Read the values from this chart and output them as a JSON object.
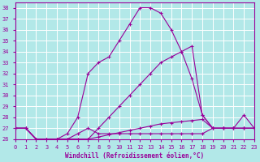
{
  "xlabel": "Windchill (Refroidissement éolien,°C)",
  "ylabel": "",
  "xlim": [
    0,
    23
  ],
  "ylim": [
    26,
    38.5
  ],
  "yticks": [
    26,
    27,
    28,
    29,
    30,
    31,
    32,
    33,
    34,
    35,
    36,
    37,
    38
  ],
  "xticks": [
    0,
    1,
    2,
    3,
    4,
    5,
    6,
    7,
    8,
    9,
    10,
    11,
    12,
    13,
    14,
    15,
    16,
    17,
    18,
    19,
    20,
    21,
    22,
    23
  ],
  "bg_color": "#b2e8e8",
  "grid_color": "#ffffff",
  "line_color": "#990099",
  "line_diagonal_x": [
    0,
    1,
    2,
    3,
    4,
    5,
    6,
    7,
    8,
    9,
    10,
    11,
    12,
    13,
    14,
    15,
    16,
    17,
    18,
    19,
    20,
    21,
    22,
    23
  ],
  "line_diagonal_y": [
    27,
    27,
    26,
    26,
    26,
    26,
    26,
    26,
    26.2,
    26.4,
    26.6,
    26.8,
    27,
    27.2,
    27.4,
    27.5,
    27.6,
    27.7,
    27.8,
    27,
    27,
    27,
    27,
    27
  ],
  "line_flat_x": [
    0,
    1,
    2,
    3,
    4,
    5,
    6,
    7,
    8,
    9,
    10,
    11,
    12,
    13,
    14,
    15,
    16,
    17,
    18,
    19,
    20,
    21,
    22,
    23
  ],
  "line_flat_y": [
    27,
    27,
    26,
    26,
    26,
    26,
    26.5,
    27,
    26.5,
    26.5,
    26.5,
    26.5,
    26.5,
    26.5,
    26.5,
    26.5,
    26.5,
    26.5,
    26.5,
    27,
    27,
    27,
    27,
    27
  ],
  "line_curve_x": [
    0,
    1,
    2,
    3,
    4,
    5,
    6,
    7,
    8,
    9,
    10,
    11,
    12,
    13,
    14,
    15,
    16,
    17,
    18,
    19,
    20,
    21,
    22,
    23
  ],
  "line_curve_y": [
    27,
    27,
    26,
    26,
    26,
    26.5,
    28,
    32,
    33,
    33.5,
    35,
    36.5,
    38,
    38,
    37.5,
    36,
    34,
    31.5,
    28.2,
    27,
    27,
    27,
    28.2,
    27
  ],
  "line_rise_x": [
    0,
    1,
    2,
    3,
    4,
    5,
    6,
    7,
    8,
    9,
    10,
    11,
    12,
    13,
    14,
    15,
    16,
    17,
    18,
    19,
    20,
    21,
    22,
    23
  ],
  "line_rise_y": [
    27,
    27,
    26,
    26,
    26,
    26,
    26,
    26,
    27,
    28,
    29,
    30,
    31,
    32,
    33,
    33.5,
    34,
    34.5,
    28.2,
    27,
    27,
    27,
    27,
    27
  ]
}
